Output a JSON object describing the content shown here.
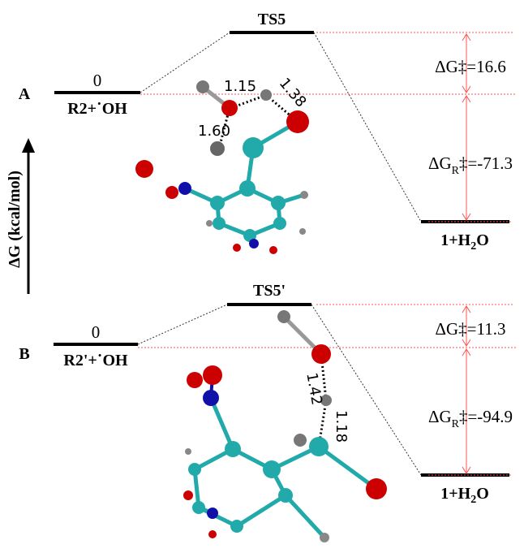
{
  "axis_label": "ΔG (kcal/mol)",
  "panels": [
    {
      "label": "A",
      "ts": "TS5",
      "reactant_energy": "0",
      "reactant": "R2+˙OH",
      "barrier": {
        "main": "ΔG",
        "rest": "‡=16.6"
      },
      "reaction": {
        "main": "ΔG",
        "sub": "R",
        "rest": "‡=-71.3"
      },
      "product": {
        "main": "1+H",
        "sub": "2",
        "rest": "O"
      },
      "bonds": [
        "1.15",
        "1.38",
        "1.60"
      ]
    },
    {
      "label": "B",
      "ts": "TS5'",
      "reactant_energy": "0",
      "reactant": "R2'+˙OH",
      "barrier": {
        "main": "ΔG",
        "rest": "‡=11.3"
      },
      "reaction": {
        "main": "ΔG",
        "sub": "R",
        "rest": "‡=-94.9"
      },
      "product": {
        "main": "1+H",
        "sub": "2",
        "rest": "O"
      },
      "bonds": [
        "1.42",
        "1.18"
      ]
    }
  ]
}
